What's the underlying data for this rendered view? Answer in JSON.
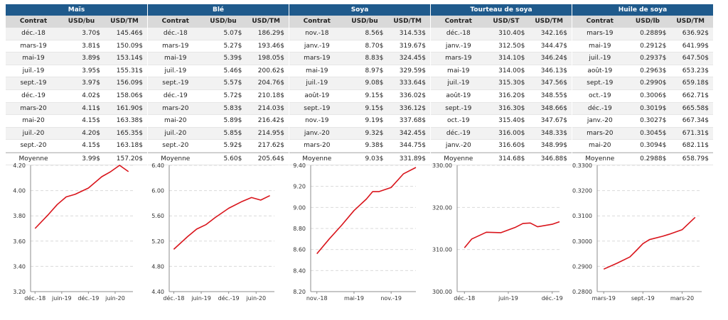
{
  "tables": [
    {
      "title": "Maïs",
      "headers": [
        "Contrat",
        "USD/bu",
        "USD/TM"
      ],
      "rows": [
        [
          "déc.-18",
          "3.70$",
          "145.46$"
        ],
        [
          "mars-19",
          "3.81$",
          "150.09$"
        ],
        [
          "mai-19",
          "3.89$",
          "153.14$"
        ],
        [
          "juil.-19",
          "3.95$",
          "155.31$"
        ],
        [
          "sept.-19",
          "3.97$",
          "156.09$"
        ],
        [
          "déc.-19",
          "4.02$",
          "158.06$"
        ],
        [
          "mars-20",
          "4.11$",
          "161.90$"
        ],
        [
          "mai-20",
          "4.15$",
          "163.38$"
        ],
        [
          "juil.-20",
          "4.20$",
          "165.35$"
        ],
        [
          "sept.-20",
          "4.15$",
          "163.18$"
        ]
      ],
      "average": [
        "Moyenne",
        "3.99$",
        "157.20$"
      ]
    },
    {
      "title": "Blé",
      "headers": [
        "Contrat",
        "USD/bu",
        "USD/TM"
      ],
      "rows": [
        [
          "déc.-18",
          "5.07$",
          "186.29$"
        ],
        [
          "mars-19",
          "5.27$",
          "193.46$"
        ],
        [
          "mai-19",
          "5.39$",
          "198.05$"
        ],
        [
          "juil.-19",
          "5.46$",
          "200.62$"
        ],
        [
          "sept.-19",
          "5.57$",
          "204.76$"
        ],
        [
          "déc.-19",
          "5.72$",
          "210.18$"
        ],
        [
          "mars-20",
          "5.83$",
          "214.03$"
        ],
        [
          "mai-20",
          "5.89$",
          "216.42$"
        ],
        [
          "juil.-20",
          "5.85$",
          "214.95$"
        ],
        [
          "sept.-20",
          "5.92$",
          "217.62$"
        ]
      ],
      "average": [
        "Moyenne",
        "5.60$",
        "205.64$"
      ]
    },
    {
      "title": "Soya",
      "headers": [
        "Contrat",
        "USD/bu",
        "USD/TM"
      ],
      "rows": [
        [
          "nov.-18",
          "8.56$",
          "314.53$"
        ],
        [
          "janv.-19",
          "8.70$",
          "319.67$"
        ],
        [
          "mars-19",
          "8.83$",
          "324.45$"
        ],
        [
          "mai-19",
          "8.97$",
          "329.59$"
        ],
        [
          "juil.-19",
          "9.08$",
          "333.64$"
        ],
        [
          "août-19",
          "9.15$",
          "336.02$"
        ],
        [
          "sept.-19",
          "9.15$",
          "336.12$"
        ],
        [
          "nov.-19",
          "9.19$",
          "337.68$"
        ],
        [
          "janv.-20",
          "9.32$",
          "342.45$"
        ],
        [
          "mars-20",
          "9.38$",
          "344.75$"
        ]
      ],
      "average": [
        "Moyenne",
        "9.03$",
        "331.89$"
      ]
    },
    {
      "title": "Tourteau de soya",
      "headers": [
        "Contrat",
        "USD/ST",
        "USD/TM"
      ],
      "rows": [
        [
          "déc.-18",
          "310.40$",
          "342.16$"
        ],
        [
          "janv.-19",
          "312.50$",
          "344.47$"
        ],
        [
          "mars-19",
          "314.10$",
          "346.24$"
        ],
        [
          "mai-19",
          "314.00$",
          "346.13$"
        ],
        [
          "juil.-19",
          "315.30$",
          "347.56$"
        ],
        [
          "août-19",
          "316.20$",
          "348.55$"
        ],
        [
          "sept.-19",
          "316.30$",
          "348.66$"
        ],
        [
          "oct.-19",
          "315.40$",
          "347.67$"
        ],
        [
          "déc.-19",
          "316.00$",
          "348.33$"
        ],
        [
          "janv.-20",
          "316.60$",
          "348.99$"
        ]
      ],
      "average": [
        "Moyenne",
        "314.68$",
        "346.88$"
      ]
    },
    {
      "title": "Huile de soya",
      "headers": [
        "Contrat",
        "USD/lb",
        "USD/TM"
      ],
      "rows": [
        [
          "mars-19",
          "0.2889$",
          "636.92$"
        ],
        [
          "mai-19",
          "0.2912$",
          "641.99$"
        ],
        [
          "juil.-19",
          "0.2937$",
          "647.50$"
        ],
        [
          "août-19",
          "0.2963$",
          "653.23$"
        ],
        [
          "sept.-19",
          "0.2990$",
          "659.18$"
        ],
        [
          "oct.-19",
          "0.3006$",
          "662.71$"
        ],
        [
          "déc.-19",
          "0.3019$",
          "665.58$"
        ],
        [
          "janv.-20",
          "0.3027$",
          "667.34$"
        ],
        [
          "mars-20",
          "0.3045$",
          "671.31$"
        ],
        [
          "mai-20",
          "0.3094$",
          "682.11$"
        ]
      ],
      "average": [
        "Moyenne",
        "0.2988$",
        "658.79$"
      ]
    }
  ],
  "colors": {
    "header_bg": "#1f5a8c",
    "line": "#d9141b",
    "grid": "#d9d9d9"
  },
  "chart_data": [
    {
      "type": "line",
      "x": [
        "déc.-18",
        "mars-19",
        "mai-19",
        "juil.-19",
        "sept.-19",
        "déc.-19",
        "mars-20",
        "mai-20",
        "juil.-20",
        "sept.-20"
      ],
      "series": [
        {
          "values": [
            3.7,
            3.81,
            3.89,
            3.95,
            3.97,
            4.02,
            4.11,
            4.15,
            4.2,
            4.15
          ]
        }
      ],
      "ylim": [
        3.2,
        4.2
      ],
      "yticks": [
        "3.20",
        "3.40",
        "3.60",
        "3.80",
        "4.00",
        "4.20"
      ],
      "xticks": [
        "déc.-18",
        "juin-19",
        "déc.-19",
        "juin-20"
      ],
      "xtick_dates": [
        "2018-12",
        "2019-06",
        "2019-12",
        "2020-06"
      ],
      "x_dates": [
        "2018-12",
        "2019-03",
        "2019-05",
        "2019-07",
        "2019-09",
        "2019-12",
        "2020-03",
        "2020-05",
        "2020-07",
        "2020-09"
      ],
      "xlim": [
        "2018-11",
        "2020-10"
      ],
      "grid": true
    },
    {
      "type": "line",
      "x": [
        "déc.-18",
        "mars-19",
        "mai-19",
        "juil.-19",
        "sept.-19",
        "déc.-19",
        "mars-20",
        "mai-20",
        "juil.-20",
        "sept.-20"
      ],
      "series": [
        {
          "values": [
            5.07,
            5.27,
            5.39,
            5.46,
            5.57,
            5.72,
            5.83,
            5.89,
            5.85,
            5.92
          ]
        }
      ],
      "ylim": [
        4.4,
        6.4
      ],
      "yticks": [
        "4.40",
        "4.80",
        "5.20",
        "5.60",
        "6.00",
        "6.40"
      ],
      "xticks": [
        "déc.-18",
        "juin-19",
        "déc.-19",
        "juin-20"
      ],
      "xtick_dates": [
        "2018-12",
        "2019-06",
        "2019-12",
        "2020-06"
      ],
      "x_dates": [
        "2018-12",
        "2019-03",
        "2019-05",
        "2019-07",
        "2019-09",
        "2019-12",
        "2020-03",
        "2020-05",
        "2020-07",
        "2020-09"
      ],
      "xlim": [
        "2018-11",
        "2020-10"
      ],
      "grid": true
    },
    {
      "type": "line",
      "x": [
        "nov.-18",
        "janv.-19",
        "mars-19",
        "mai-19",
        "juil.-19",
        "août-19",
        "sept.-19",
        "nov.-19",
        "janv.-20",
        "mars-20"
      ],
      "series": [
        {
          "values": [
            8.56,
            8.7,
            8.83,
            8.97,
            9.08,
            9.15,
            9.15,
            9.19,
            9.32,
            9.38
          ]
        }
      ],
      "ylim": [
        8.2,
        9.4
      ],
      "yticks": [
        "8.20",
        "8.40",
        "8.60",
        "8.80",
        "9.00",
        "9.20",
        "9.40"
      ],
      "xticks": [
        "nov.-18",
        "mai-19",
        "nov.-19"
      ],
      "xtick_dates": [
        "2018-11",
        "2019-05",
        "2019-11"
      ],
      "x_dates": [
        "2018-11",
        "2019-01",
        "2019-03",
        "2019-05",
        "2019-07",
        "2019-08",
        "2019-09",
        "2019-11",
        "2020-01",
        "2020-03"
      ],
      "xlim": [
        "2018-10",
        "2020-03"
      ],
      "grid": true
    },
    {
      "type": "line",
      "x": [
        "déc.-18",
        "janv.-19",
        "mars-19",
        "mai-19",
        "juil.-19",
        "août-19",
        "sept.-19",
        "oct.-19",
        "déc.-19",
        "janv.-20"
      ],
      "series": [
        {
          "values": [
            310.4,
            312.5,
            314.1,
            314.0,
            315.3,
            316.2,
            316.3,
            315.4,
            316.0,
            316.6
          ]
        }
      ],
      "ylim": [
        300.0,
        330.0
      ],
      "yticks": [
        "300.00",
        "310.00",
        "320.00",
        "330.00"
      ],
      "xticks": [
        "déc.-18",
        "juin-19",
        "déc.-19"
      ],
      "xtick_dates": [
        "2018-12",
        "2019-06",
        "2019-12"
      ],
      "x_dates": [
        "2018-12",
        "2019-01",
        "2019-03",
        "2019-05",
        "2019-07",
        "2019-08",
        "2019-09",
        "2019-10",
        "2019-12",
        "2020-01"
      ],
      "xlim": [
        "2018-11",
        "2020-01"
      ],
      "grid": true
    },
    {
      "type": "line",
      "x": [
        "mars-19",
        "mai-19",
        "juil.-19",
        "août-19",
        "sept.-19",
        "oct.-19",
        "déc.-19",
        "janv.-20",
        "mars-20",
        "mai-20"
      ],
      "series": [
        {
          "values": [
            0.2889,
            0.2912,
            0.2937,
            0.2963,
            0.299,
            0.3006,
            0.3019,
            0.3027,
            0.3045,
            0.3094
          ]
        }
      ],
      "ylim": [
        0.28,
        0.33
      ],
      "yticks": [
        "0.2800",
        "0.2900",
        "0.3000",
        "0.3100",
        "0.3200",
        "0.3300"
      ],
      "xticks": [
        "mars-19",
        "sept.-19",
        "mars-20"
      ],
      "xtick_dates": [
        "2019-03",
        "2019-09",
        "2020-03"
      ],
      "x_dates": [
        "2019-03",
        "2019-05",
        "2019-07",
        "2019-08",
        "2019-09",
        "2019-10",
        "2019-12",
        "2020-01",
        "2020-03",
        "2020-05"
      ],
      "xlim": [
        "2019-02",
        "2020-06"
      ],
      "grid": true
    }
  ]
}
